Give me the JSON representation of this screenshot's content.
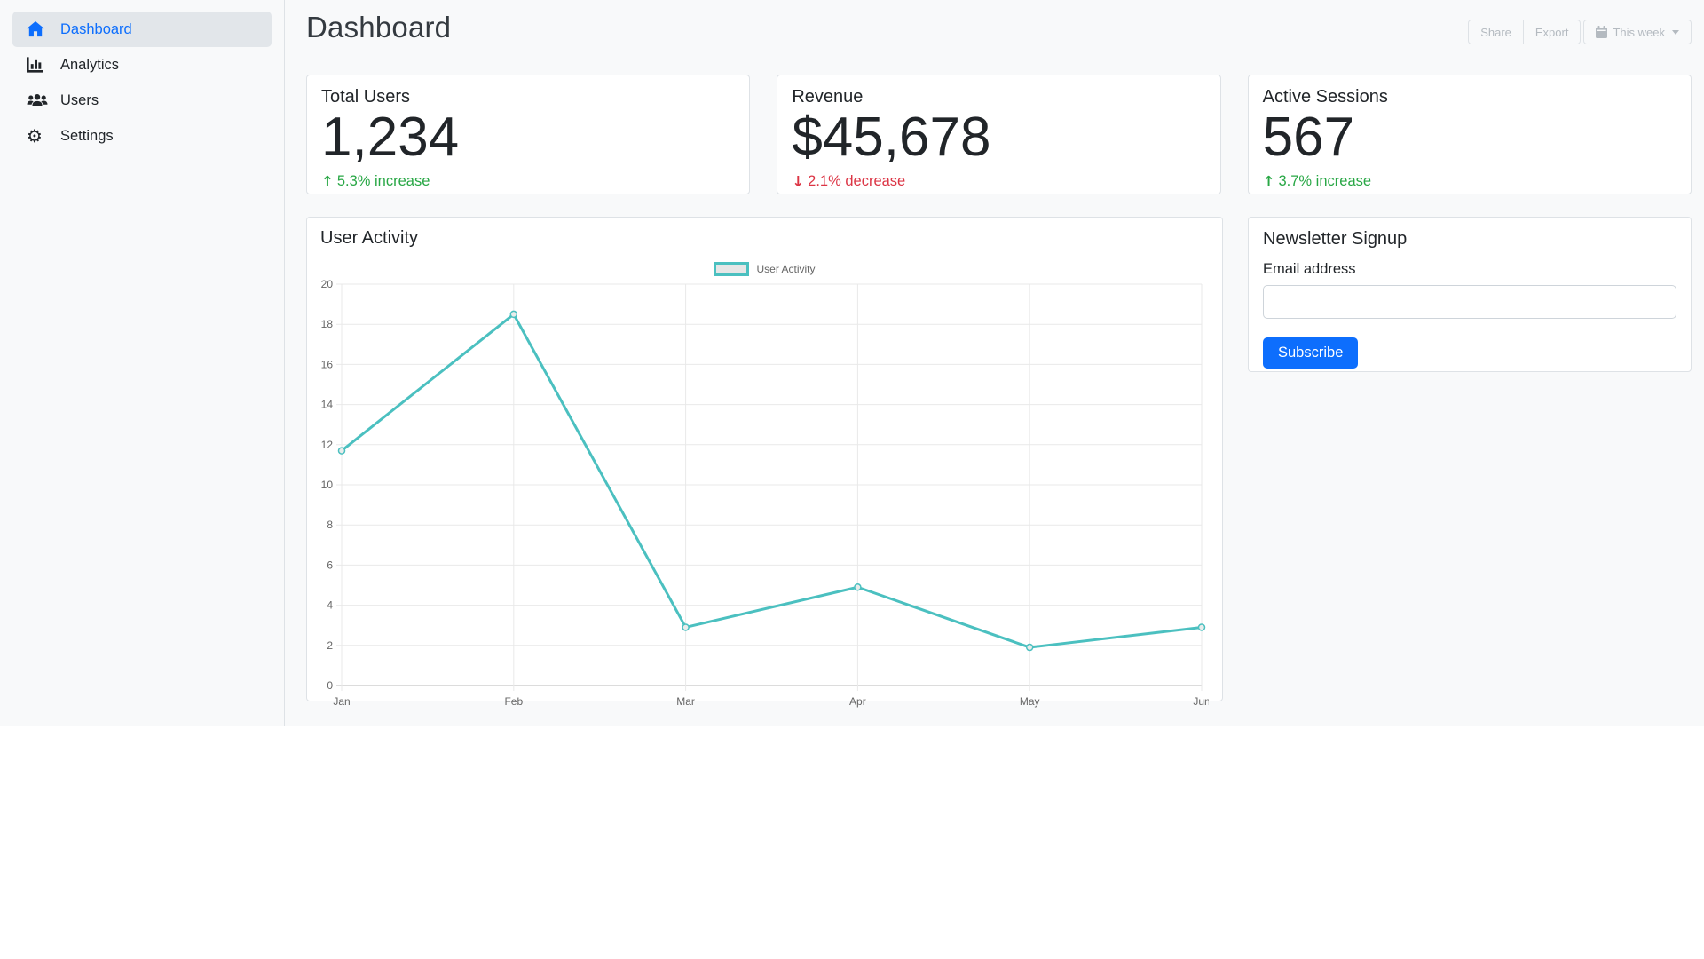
{
  "header": {
    "title": "Dashboard",
    "toolbar": {
      "share_label": "Share",
      "export_label": "Export",
      "period_label": "This week"
    }
  },
  "sidebar": {
    "items": [
      {
        "label": "Dashboard",
        "icon": "home-icon",
        "active": true
      },
      {
        "label": "Analytics",
        "icon": "bar-chart-icon",
        "active": false
      },
      {
        "label": "Users",
        "icon": "users-icon",
        "active": false
      },
      {
        "label": "Settings",
        "icon": "gear-icon",
        "active": false
      }
    ]
  },
  "stats": [
    {
      "label": "Total Users",
      "value": "1,234",
      "arrow": "↑",
      "trend": "5.3% increase",
      "trend_color": "#28a745"
    },
    {
      "label": "Revenue",
      "value": "$45,678",
      "arrow": "↓",
      "trend": "2.1% decrease",
      "trend_color": "#dc3545"
    },
    {
      "label": "Active Sessions",
      "value": "567",
      "arrow": "↑",
      "trend": "3.7% increase",
      "trend_color": "#28a745"
    }
  ],
  "chart_data": {
    "type": "line",
    "title": "User Activity",
    "categories": [
      "Jan",
      "Feb",
      "Mar",
      "Apr",
      "May",
      "Jun"
    ],
    "series": [
      {
        "name": "User Activity",
        "values": [
          11.7,
          18.5,
          2.9,
          4.9,
          1.9,
          2.9
        ]
      }
    ],
    "xlabel": "",
    "ylabel": "",
    "ylim": [
      0,
      20
    ],
    "ytick_step": 2,
    "grid": true,
    "legend_position": "top-center",
    "line_color": "#4BC0C0",
    "point_fill": "#e9eceb",
    "legend_box_fill": "#e6e6e6",
    "grid_color": "#e9e9e9",
    "zero_line_color": "#b8b8b8",
    "tick_label_color": "#666666"
  },
  "newsletter": {
    "title": "Newsletter Signup",
    "email_label": "Email address",
    "email_value": "",
    "subscribe_label": "Subscribe"
  },
  "colors": {
    "primary": "#0d6efd",
    "success": "#28a745",
    "danger": "#dc3545",
    "teal": "#4BC0C0",
    "muted_button_text": "#b4bac0",
    "app_background": "#f8f9fa"
  }
}
